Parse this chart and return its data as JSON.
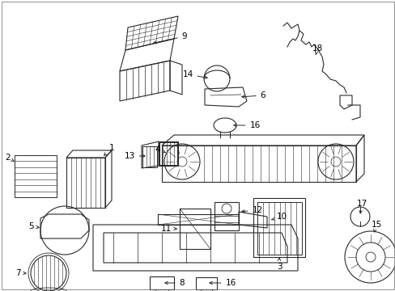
{
  "bg_color": "#ffffff",
  "fig_width": 4.89,
  "fig_height": 3.6,
  "dpi": 100,
  "line_color": "#2a2a2a",
  "label_color": "#000000",
  "font_size": 7.5,
  "border_color": "#666666"
}
